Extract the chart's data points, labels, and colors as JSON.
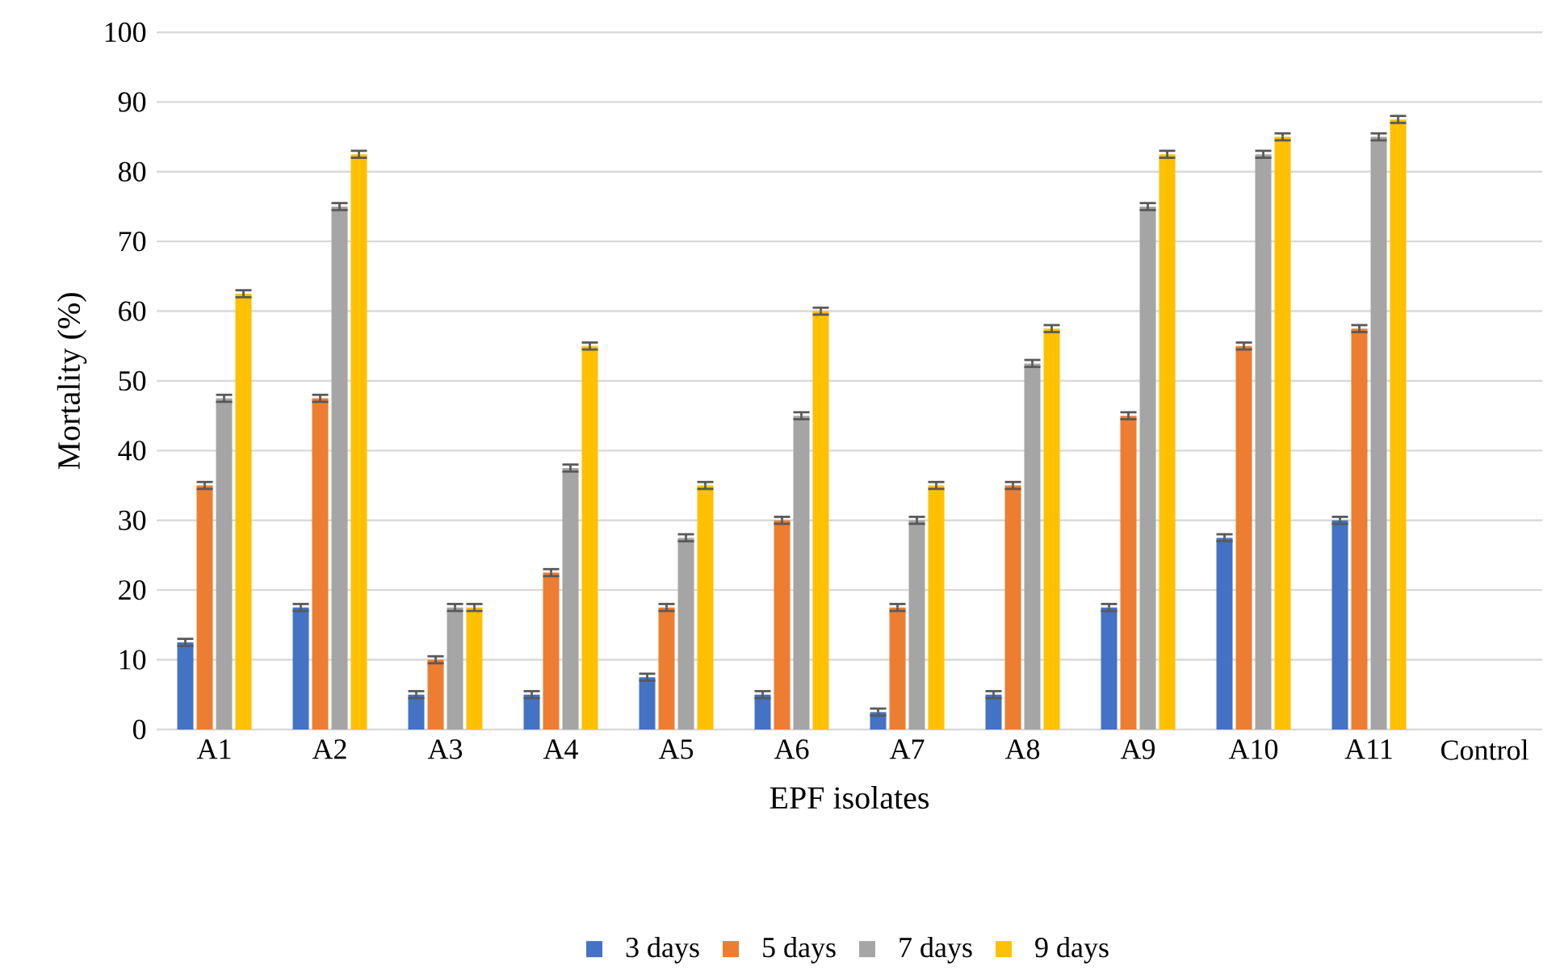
{
  "chart_data": {
    "type": "bar",
    "xlabel": "EPF isolates",
    "ylabel": "Mortality  (%)",
    "categories": [
      "A1",
      "A2",
      "A3",
      "A4",
      "A5",
      "A6",
      "A7",
      "A8",
      "A9",
      "A10",
      "A11",
      "Control"
    ],
    "series": [
      {
        "name": "3 days",
        "color": "#4472c4",
        "values": [
          12.5,
          17.5,
          5,
          5,
          7.5,
          5,
          2.5,
          5,
          17.5,
          27.5,
          30,
          0
        ],
        "errors": [
          0.5,
          0.5,
          0.5,
          0.5,
          0.5,
          0.5,
          0.5,
          0.5,
          0.5,
          0.5,
          0.5,
          null
        ]
      },
      {
        "name": "5 days",
        "color": "#ed7d31",
        "values": [
          35,
          47.5,
          10,
          22.5,
          17.5,
          30,
          17.5,
          35,
          45,
          55,
          57.5,
          0
        ],
        "errors": [
          0.5,
          0.5,
          0.5,
          0.5,
          0.5,
          0.5,
          0.5,
          0.5,
          0.5,
          0.5,
          0.5,
          null
        ]
      },
      {
        "name": "7 days",
        "color": "#a5a5a5",
        "values": [
          47.5,
          75,
          17.5,
          37.5,
          27.5,
          45,
          30,
          52.5,
          75,
          82.5,
          85,
          0
        ],
        "errors": [
          0.5,
          0.5,
          0.5,
          0.5,
          0.5,
          0.5,
          0.5,
          0.5,
          0.5,
          0.5,
          0.5,
          null
        ]
      },
      {
        "name": "9 days",
        "color": "#ffc000",
        "values": [
          62.5,
          82.5,
          17.5,
          55,
          35,
          60,
          35,
          57.5,
          82.5,
          85,
          87.5,
          0
        ],
        "errors": [
          0.5,
          0.5,
          0.5,
          0.5,
          0.5,
          0.5,
          0.5,
          0.5,
          0.5,
          0.5,
          0.5,
          null
        ]
      }
    ],
    "ylim": [
      0,
      100
    ],
    "yticks": [
      0,
      10,
      20,
      30,
      40,
      50,
      60,
      70,
      80,
      90,
      100
    ],
    "grid": "y",
    "legend": "bottom"
  }
}
